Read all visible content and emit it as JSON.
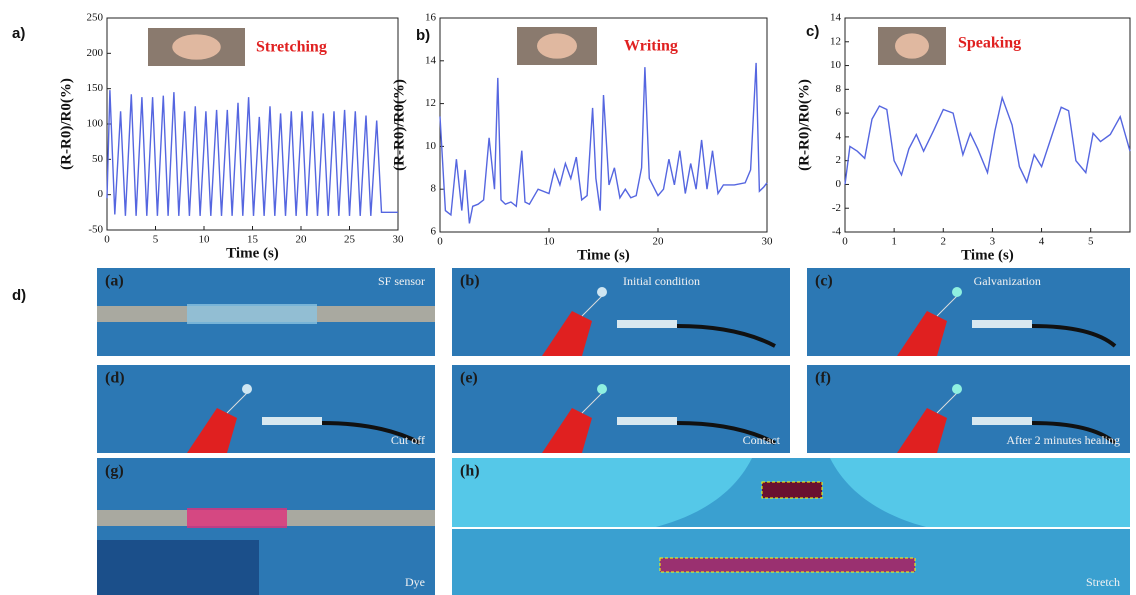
{
  "chart_data": [
    {
      "type": "line",
      "panel_label": "a)",
      "annotation": "Stretching",
      "xlabel": "Time (s)",
      "ylabel": "(R-R0)/R0(%)",
      "xlim": [
        0,
        30
      ],
      "xticks": [
        0,
        5,
        10,
        15,
        20,
        25,
        30
      ],
      "ylim": [
        -50,
        250
      ],
      "yticks": [
        -50,
        0,
        50,
        100,
        150,
        200,
        250
      ],
      "series": [
        {
          "color": "#5566e0",
          "x": [
            0,
            0.3,
            0.8,
            1.4,
            1.9,
            2.5,
            3.0,
            3.6,
            4.1,
            4.7,
            5.2,
            5.8,
            6.3,
            6.9,
            7.4,
            8.0,
            8.5,
            9.1,
            9.6,
            10.2,
            10.7,
            11.3,
            11.8,
            12.4,
            12.9,
            13.5,
            14.0,
            14.6,
            15.1,
            15.7,
            16.2,
            16.8,
            17.3,
            17.9,
            18.4,
            19.0,
            19.5,
            20.1,
            20.6,
            21.2,
            21.7,
            22.3,
            22.8,
            23.4,
            23.9,
            24.5,
            25.0,
            25.6,
            26.1,
            26.7,
            27.2,
            27.8,
            28.3,
            30
          ],
          "values": [
            -5,
            148,
            -28,
            118,
            -30,
            142,
            -30,
            138,
            -30,
            138,
            -30,
            140,
            -30,
            145,
            -30,
            118,
            -30,
            125,
            -30,
            118,
            -30,
            120,
            -30,
            120,
            -30,
            130,
            -30,
            138,
            -30,
            110,
            -30,
            125,
            -30,
            115,
            -30,
            118,
            -30,
            118,
            -30,
            118,
            -30,
            115,
            -30,
            118,
            -30,
            120,
            -30,
            118,
            -30,
            112,
            -30,
            105,
            -25,
            -25
          ]
        }
      ]
    },
    {
      "type": "line",
      "panel_label": "b)",
      "annotation": "Writing",
      "xlabel": "Time (s)",
      "ylabel": "(R-R0)/R0(%)",
      "xlim": [
        0,
        30
      ],
      "xticks": [
        0,
        10,
        20,
        30
      ],
      "ylim": [
        6,
        16
      ],
      "yticks": [
        6,
        8,
        10,
        12,
        14,
        16
      ],
      "series": [
        {
          "color": "#5566e0",
          "x": [
            0,
            0.5,
            1,
            1.5,
            2,
            2.3,
            2.7,
            3,
            3.5,
            4,
            4.5,
            5,
            5.3,
            5.6,
            6,
            6.5,
            7,
            7.5,
            7.8,
            8.2,
            9,
            10,
            10.5,
            11,
            11.5,
            12,
            12.5,
            13,
            13.5,
            14,
            14.3,
            14.7,
            15,
            15.5,
            16,
            16.5,
            17,
            17.5,
            18,
            18.5,
            18.8,
            19.2,
            20,
            20.5,
            21,
            21.5,
            22,
            22.5,
            23,
            23.5,
            24,
            24.5,
            25,
            25.5,
            26,
            27,
            28,
            28.5,
            29,
            29.3,
            29.7,
            30
          ],
          "values": [
            11.4,
            7,
            6.8,
            9.4,
            7,
            8.9,
            6.4,
            7.2,
            7.3,
            7.5,
            10.4,
            8,
            13.2,
            7.5,
            7.3,
            7.4,
            7.2,
            9.8,
            7.4,
            7.3,
            8,
            7.8,
            8.9,
            8.2,
            9.2,
            8.5,
            9.5,
            7.5,
            7.7,
            11.8,
            8.5,
            7,
            12.4,
            8.2,
            9,
            7.6,
            8,
            7.6,
            7.7,
            9,
            13.7,
            8.5,
            7.7,
            8,
            9.4,
            8.2,
            9.8,
            7.8,
            9.2,
            8,
            10.3,
            8,
            9.8,
            7.8,
            8.2,
            8.2,
            8.3,
            8.9,
            13.9,
            7.9,
            8.1,
            8.3
          ]
        }
      ]
    },
    {
      "type": "line",
      "panel_label": "c)",
      "annotation": "Speaking",
      "xlabel": "Time (s)",
      "ylabel": "(R-R0)/R0(%)",
      "xlim": [
        0,
        5.8
      ],
      "xticks": [
        0,
        1,
        2,
        3,
        4,
        5
      ],
      "ylim": [
        -4,
        14
      ],
      "yticks": [
        -4,
        -2,
        0,
        2,
        4,
        6,
        8,
        10,
        12,
        14
      ],
      "series": [
        {
          "color": "#5566e0",
          "x": [
            0,
            0.1,
            0.25,
            0.4,
            0.55,
            0.7,
            0.85,
            1.0,
            1.15,
            1.3,
            1.45,
            1.6,
            1.8,
            2.0,
            2.2,
            2.4,
            2.55,
            2.7,
            2.9,
            3.05,
            3.2,
            3.4,
            3.55,
            3.7,
            3.85,
            4.0,
            4.2,
            4.4,
            4.55,
            4.7,
            4.9,
            5.05,
            5.2,
            5.4,
            5.6,
            5.8
          ],
          "values": [
            0,
            3.2,
            2.8,
            2.2,
            5.5,
            6.6,
            6.3,
            2.0,
            0.8,
            3.0,
            4.2,
            2.8,
            4.5,
            6.3,
            6.0,
            2.5,
            4.3,
            3.0,
            1.0,
            4.5,
            7.3,
            5.0,
            1.5,
            0.2,
            2.5,
            1.5,
            4.0,
            6.5,
            6.2,
            2.0,
            1.0,
            4.3,
            3.6,
            4.2,
            5.7,
            2.8
          ]
        }
      ]
    }
  ],
  "photos": {
    "panel_label": "d)",
    "cells": [
      {
        "letter": "(a)",
        "caption": "SF sensor"
      },
      {
        "letter": "(b)",
        "caption": "Initial condition"
      },
      {
        "letter": "(c)",
        "caption": "Galvanization"
      },
      {
        "letter": "(d)",
        "caption": "Cut off"
      },
      {
        "letter": "(e)",
        "caption": "Contact"
      },
      {
        "letter": "(f)",
        "caption": "After 2 minutes healing"
      },
      {
        "letter": "(g)",
        "caption": "Dye"
      },
      {
        "letter": "(h)",
        "caption": "Stretch"
      }
    ]
  }
}
